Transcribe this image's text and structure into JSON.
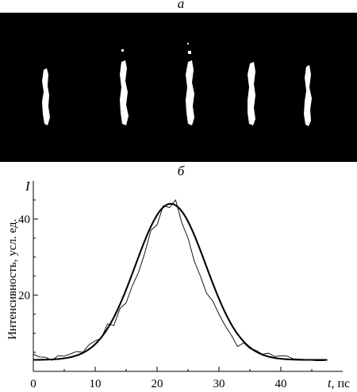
{
  "panel_a": {
    "label": "а",
    "background_color": "#000000",
    "streak_color": "#ffffff",
    "streak_count": 5
  },
  "panel_b": {
    "label": "б"
  },
  "chart_data": {
    "type": "line",
    "title": "",
    "y_symbol": "I",
    "ylabel": "Интенсивность, усл. ед.",
    "xlabel_symbol": "t",
    "xlabel_unit": ", пс",
    "xlim": [
      0,
      50
    ],
    "ylim": [
      0,
      50
    ],
    "x_ticks": [
      0,
      10,
      20,
      30,
      40
    ],
    "y_ticks": [
      20,
      40
    ],
    "grid": false,
    "series": [
      {
        "style": "thin",
        "x": [
          0,
          1,
          2,
          3,
          4,
          5,
          6,
          7,
          8,
          9,
          10,
          11,
          12,
          13,
          14,
          15,
          16,
          17,
          18,
          19,
          20,
          21,
          22,
          23,
          24,
          25,
          26,
          27,
          28,
          29,
          30,
          31,
          32,
          33,
          34,
          35,
          36,
          37,
          38,
          39,
          40,
          41,
          42,
          43,
          44,
          45,
          46,
          47
        ],
        "y": [
          4.5,
          3.8,
          3.7,
          2.9,
          4.1,
          4.0,
          4.6,
          5.2,
          5.0,
          7.0,
          8.0,
          8.7,
          12.5,
          12.0,
          16.5,
          18.0,
          22.5,
          26.0,
          31.0,
          37.0,
          38.5,
          43.5,
          43.0,
          45.0,
          39.0,
          35.0,
          29.0,
          25.0,
          20.5,
          18.5,
          15.0,
          12.0,
          9.5,
          6.5,
          7.5,
          6.0,
          5.5,
          4.5,
          4.8,
          3.9,
          4.1,
          4.0,
          3.3,
          3.2,
          3.0,
          2.9,
          2.8,
          2.8
        ]
      },
      {
        "style": "thick",
        "type": "gaussian-fit",
        "x_range": [
          0,
          47.5
        ],
        "baseline": 3.0,
        "amplitude": 41.0,
        "center": 22.2,
        "sigma": 5.7
      }
    ]
  }
}
